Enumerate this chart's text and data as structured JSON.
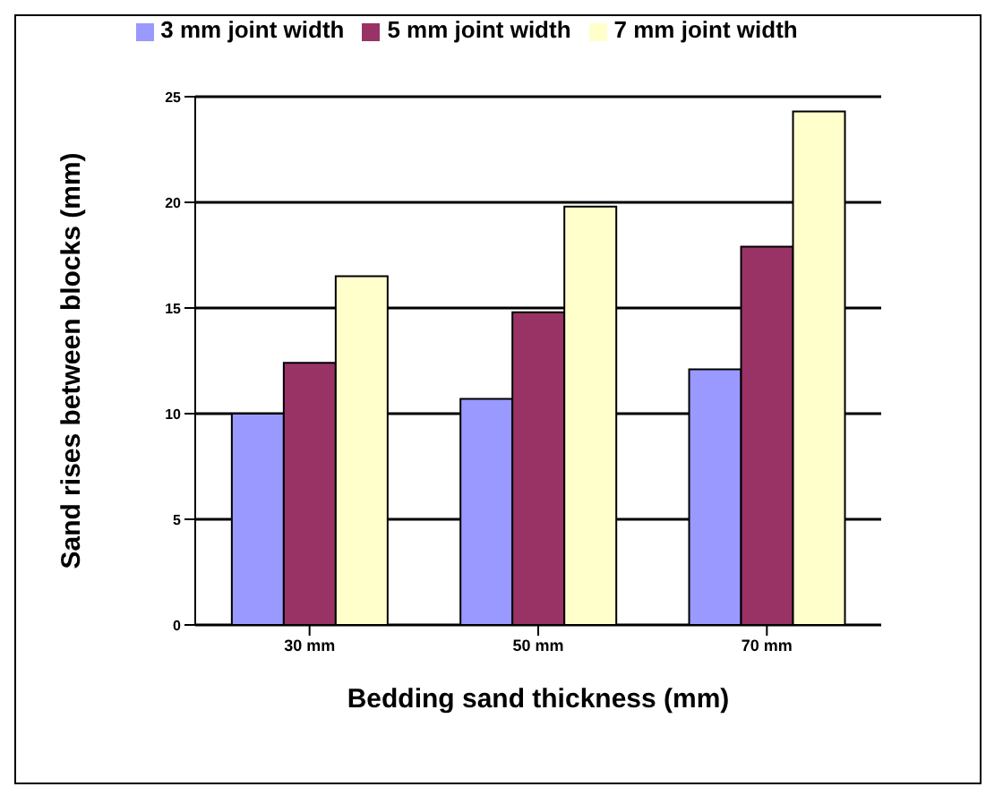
{
  "chart_data": {
    "type": "bar",
    "xlabel": "Bedding sand thickness (mm)",
    "ylabel": "Sand rises between blocks (mm)",
    "categories": [
      "30 mm",
      "50 mm",
      "70 mm"
    ],
    "series": [
      {
        "name": "3 mm joint width",
        "color": "#9999ff",
        "values": [
          10,
          10.7,
          12.1
        ]
      },
      {
        "name": "5 mm joint width",
        "color": "#993366",
        "values": [
          12.4,
          14.8,
          17.9
        ]
      },
      {
        "name": "7 mm joint width",
        "color": "#ffffcc",
        "values": [
          16.5,
          19.8,
          24.3
        ]
      }
    ],
    "ylim": [
      0,
      25
    ],
    "yticks": [
      0,
      5,
      10,
      15,
      20,
      25
    ],
    "grid": "y",
    "legend": "top"
  }
}
